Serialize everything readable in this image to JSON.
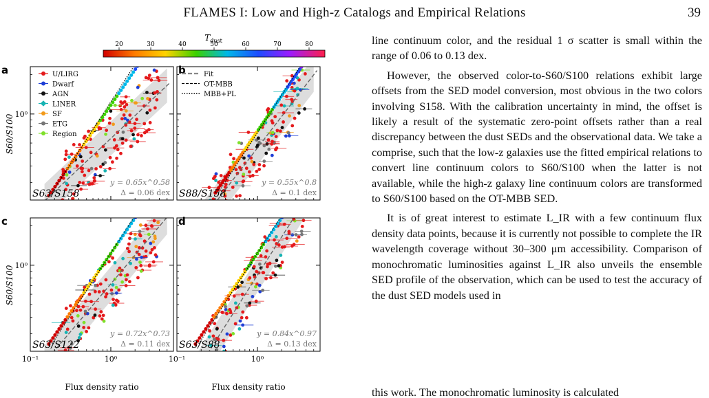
{
  "header": {
    "running_title": "FLAMES I: Low and High-z Catalogs and Empirical Relations",
    "page_number": "39"
  },
  "figure": {
    "colorbar": {
      "label": "T_dust",
      "ticks": [
        "20",
        "30",
        "40",
        "50",
        "60",
        "70",
        "80"
      ],
      "range": [
        15,
        85
      ]
    },
    "ylabel": "S60/S100",
    "xlabel": "Flux density ratio",
    "x_ticks": [
      "10⁻¹",
      "10⁰",
      "10⁻¹",
      "10⁰"
    ],
    "legend_sources": [
      {
        "label": "U/LIRG",
        "color": "#e41a1c",
        "marker": "circle"
      },
      {
        "label": "Dwarf",
        "color": "#1f3fd6",
        "marker": "circle"
      },
      {
        "label": "AGN",
        "color": "#111111",
        "marker": "circle"
      },
      {
        "label": "LINER",
        "color": "#17b3b3",
        "marker": "diamond"
      },
      {
        "label": "SF",
        "color": "#f29a1a",
        "marker": "circle"
      },
      {
        "label": "ETG",
        "color": "#777777",
        "marker": "circle"
      },
      {
        "label": "Region",
        "color": "#7fe02a",
        "marker": "circle"
      }
    ],
    "legend_models": [
      {
        "label": "Fit",
        "style": "dashed-gray"
      },
      {
        "label": "OT-MBB",
        "style": "dashed-black"
      },
      {
        "label": "MBB+PL",
        "style": "dotted-black"
      }
    ],
    "panels": [
      {
        "letter": "a",
        "pair": "S63/S158",
        "fit": "y = 0.65x^0.58",
        "scatter": "Δ = 0.06 dex",
        "a": 0.65,
        "b": 0.58
      },
      {
        "letter": "b",
        "pair": "S88/S158",
        "fit": "y = 0.55x^0.8",
        "scatter": "Δ = 0.1 dex",
        "a": 0.55,
        "b": 0.8
      },
      {
        "letter": "c",
        "pair": "S63/S122",
        "fit": "y = 0.72x^0.73",
        "scatter": "Δ = 0.11 dex",
        "a": 0.72,
        "b": 0.73
      },
      {
        "letter": "d",
        "pair": "S63/S88",
        "fit": "y = 0.84x^0.97",
        "scatter": "Δ = 0.13 dex",
        "a": 0.84,
        "b": 0.97
      }
    ],
    "axis_range": {
      "x": [
        0.1,
        6.0
      ],
      "y": [
        0.22,
        2.3
      ]
    }
  },
  "body": {
    "p1": "line continuum color, and the residual 1 σ scatter is small within the range of 0.06 to 0.13 dex.",
    "p2": "However, the observed color-to-S60/S100 relations exhibit large offsets from the SED model conversion, most obvious in the two colors involving S158. With the calibration uncertainty in mind, the offset is likely a result of the systematic zero-point offsets rather than a real discrepancy between the dust SEDs and the observational data. We take a comprise, such that the low-z galaxies use the fitted empirical relations to convert line continuum colors to S60/S100 when the latter is not available, while the high-z galaxy line continuum colors are transformed to S60/S100 based on the OT-MBB SED.",
    "p3": "It is of great interest to estimate L_IR with a few continuum flux density data points, because it is currently not possible to complete the IR wavelength coverage without 30–300 μm accessibility. Comparison of monochromatic luminosities against L_IR also unveils the ensemble SED profile of the observation, which can be used to test the accuracy of the dust SED models used in",
    "p3_cut": "this work. The monochromatic luminosity is calculated"
  }
}
